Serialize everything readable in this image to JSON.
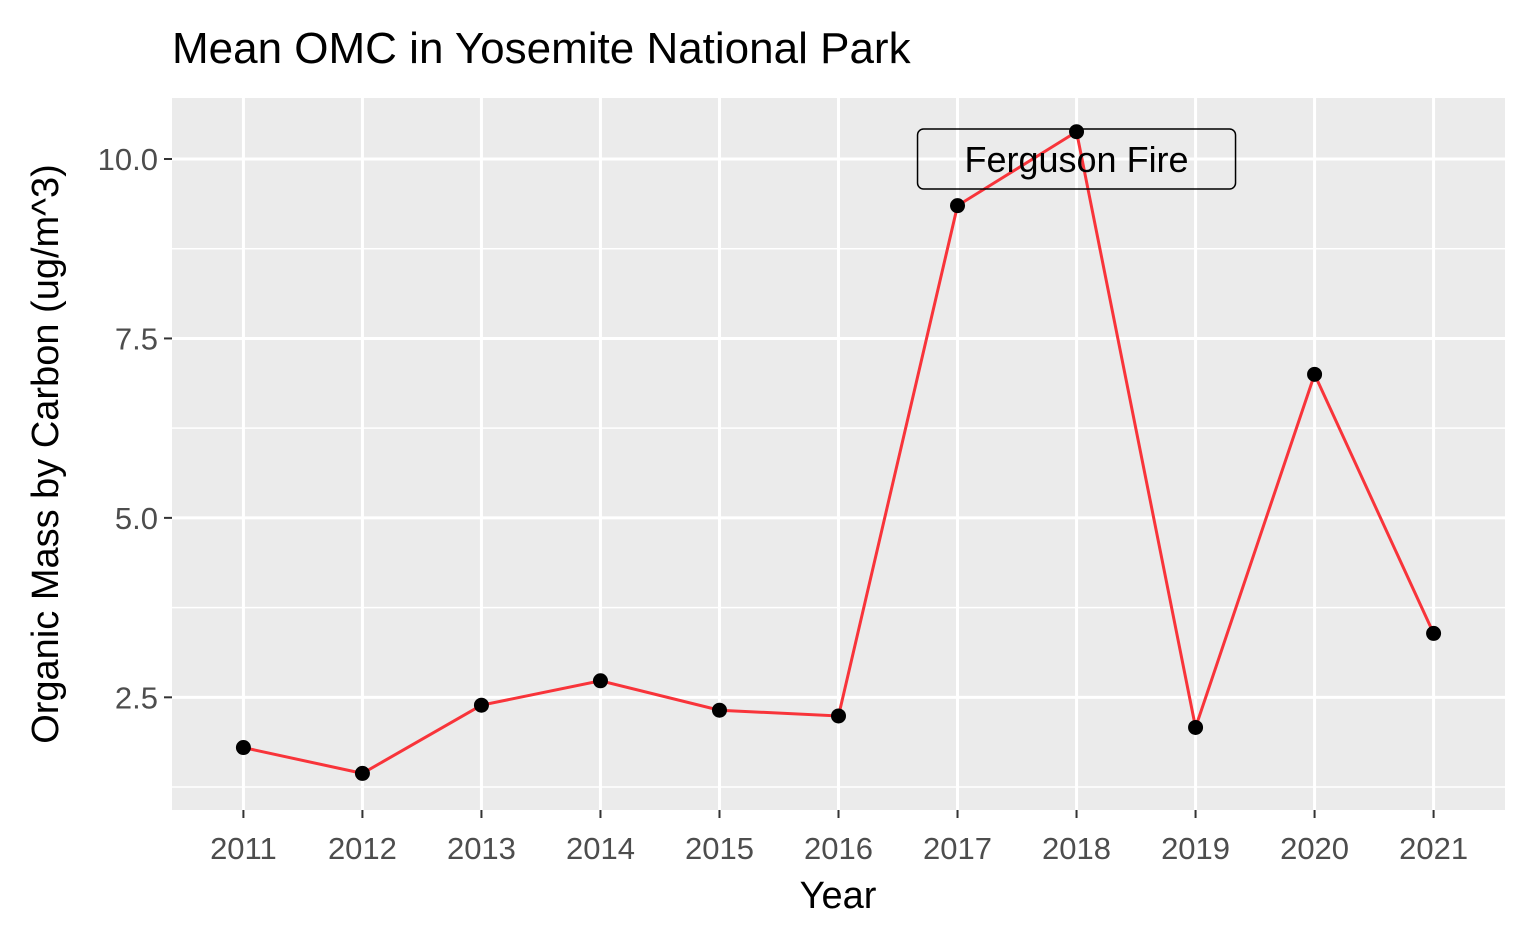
{
  "chart_data": {
    "type": "line",
    "title": "Mean OMC in Yosemite National Park",
    "xlabel": "Year",
    "ylabel": "Organic Mass by Carbon (ug/m^3)",
    "x": [
      2011,
      2012,
      2013,
      2014,
      2015,
      2016,
      2017,
      2018,
      2019,
      2020,
      2021
    ],
    "y": [
      1.8,
      1.44,
      2.39,
      2.73,
      2.32,
      2.24,
      9.35,
      10.38,
      2.08,
      7.0,
      3.39
    ],
    "x_ticks": [
      "2011",
      "2012",
      "2013",
      "2014",
      "2015",
      "2016",
      "2017",
      "2018",
      "2019",
      "2020",
      "2021"
    ],
    "y_ticks": [
      2.5,
      5.0,
      7.5,
      10.0
    ],
    "y_tick_labels": [
      "2.5",
      "5.0",
      "7.5",
      "10.0"
    ],
    "ylim": [
      0.93,
      10.85
    ],
    "grid": true,
    "line_color": "#f8343a",
    "point_color": "#000000",
    "panel_background": "#ebebeb",
    "annotation": {
      "label": "Ferguson Fire",
      "x": 2018,
      "y": 10.0
    }
  }
}
